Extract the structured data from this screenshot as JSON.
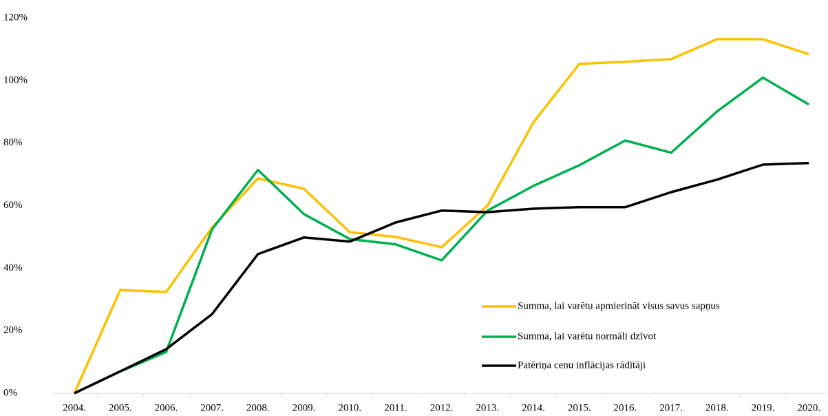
{
  "chart_data": {
    "type": "line",
    "categories": [
      "2004.",
      "2005.",
      "2006.",
      "2007.",
      "2008.",
      "2009.",
      "2010.",
      "2011.",
      "2012.",
      "2013.",
      "2014.",
      "2015.",
      "2016.",
      "2017.",
      "2018.",
      "2019.",
      "2020."
    ],
    "series": [
      {
        "name": "Summa, lai varētu apmierināt visus savus sapņus",
        "color": "#ffc000",
        "values": [
          0,
          33,
          32.4,
          53,
          68.7,
          65.4,
          51.5,
          50,
          46.7,
          60,
          86.6,
          105.3,
          106,
          106.8,
          113.2,
          113.2,
          108.4
        ]
      },
      {
        "name": "Summa, lai varētu normāli dzīvot",
        "color": "#00b050",
        "values": [
          0,
          7,
          13.2,
          52.4,
          71.4,
          57.3,
          49.3,
          47.6,
          42.5,
          58.4,
          66.3,
          72.9,
          80.8,
          76.9,
          90.1,
          100.9,
          92.3
        ]
      },
      {
        "name": "Patēriņa cenu inflācijas rādītāji",
        "color": "#000000",
        "values": [
          0,
          7,
          14.1,
          25.3,
          44.5,
          49.8,
          48.5,
          54.6,
          58.4,
          57.9,
          59,
          59.5,
          59.5,
          64.3,
          68.3,
          73.1,
          73.6
        ]
      }
    ],
    "ylim": [
      0,
      120
    ],
    "yticks": [
      {
        "value": 0,
        "label": "0%"
      },
      {
        "value": 20,
        "label": "20%"
      },
      {
        "value": 40,
        "label": "40%"
      },
      {
        "value": 60,
        "label": "60%"
      },
      {
        "value": 80,
        "label": "80%"
      },
      {
        "value": 100,
        "label": "100%"
      },
      {
        "value": 120,
        "label": "120%"
      }
    ],
    "grid": false,
    "legend": "lower right"
  }
}
